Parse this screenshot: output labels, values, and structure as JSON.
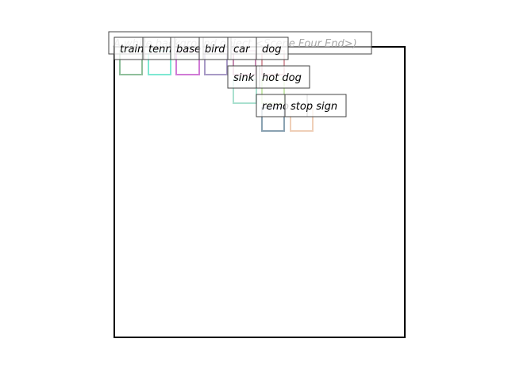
{
  "caption": "A white background object <Scene Four End>)",
  "labels": [
    {
      "id": "train",
      "text": "train",
      "color": "#8fbf9b"
    },
    {
      "id": "tennis",
      "text": "tenn",
      "color": "#7ee8d2"
    },
    {
      "id": "baseball",
      "text": "base",
      "color": "#d07ad6"
    },
    {
      "id": "bird",
      "text": "bird",
      "color": "#a89ac6"
    },
    {
      "id": "car",
      "text": "car",
      "color": "#c58ab0"
    },
    {
      "id": "dog",
      "text": "dog",
      "color": "#d9a0a8"
    },
    {
      "id": "sink",
      "text": "sink",
      "color": "#a9e0cf"
    },
    {
      "id": "hot-dog",
      "text": "hot dog",
      "color": "#c9e8b0"
    },
    {
      "id": "remote",
      "text": "remo",
      "color": "#8aa2b2"
    },
    {
      "id": "stop-sign",
      "text": "stop sign",
      "color": "#efcfb8"
    }
  ]
}
